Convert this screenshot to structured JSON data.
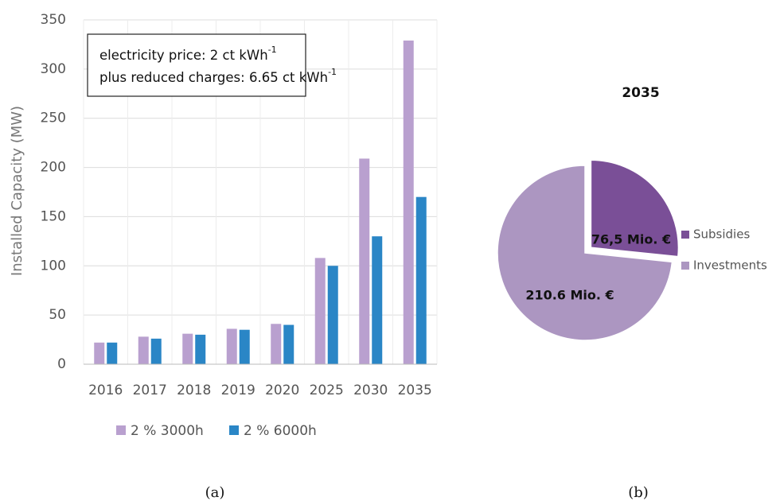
{
  "chart_data": [
    {
      "type": "bar",
      "ylabel": "Installed Capacity (MW)",
      "categories": [
        "2016",
        "2017",
        "2018",
        "2019",
        "2020",
        "2025",
        "2030",
        "2035"
      ],
      "series": [
        {
          "name": "2 % 3000h",
          "color": "#b9a0cf",
          "values": [
            22,
            28,
            31,
            36,
            41,
            108,
            209,
            329
          ]
        },
        {
          "name": "2 % 6000h",
          "color": "#2a86c6",
          "values": [
            22,
            26,
            30,
            35,
            40,
            100,
            130,
            170
          ]
        }
      ],
      "ylim": [
        0,
        350
      ],
      "yticks": [
        0,
        50,
        100,
        150,
        200,
        250,
        300,
        350
      ],
      "grid": true,
      "annotations": [
        {
          "text": "electricity price: 2 ct kWh",
          "sup": "-1"
        },
        {
          "text": "plus reduced charges: 6.65 ct kWh",
          "sup": "-1"
        }
      ],
      "caption": "(a)"
    },
    {
      "type": "pie",
      "title": "2035",
      "categories": [
        "Subsidies",
        "Investments"
      ],
      "values": [
        76.5,
        210.6
      ],
      "value_labels": [
        "76,5 Mio. €",
        "210.6 Mio. €"
      ],
      "colors": [
        "#7a4f97",
        "#ac96c1"
      ],
      "caption": "(b)"
    }
  ]
}
